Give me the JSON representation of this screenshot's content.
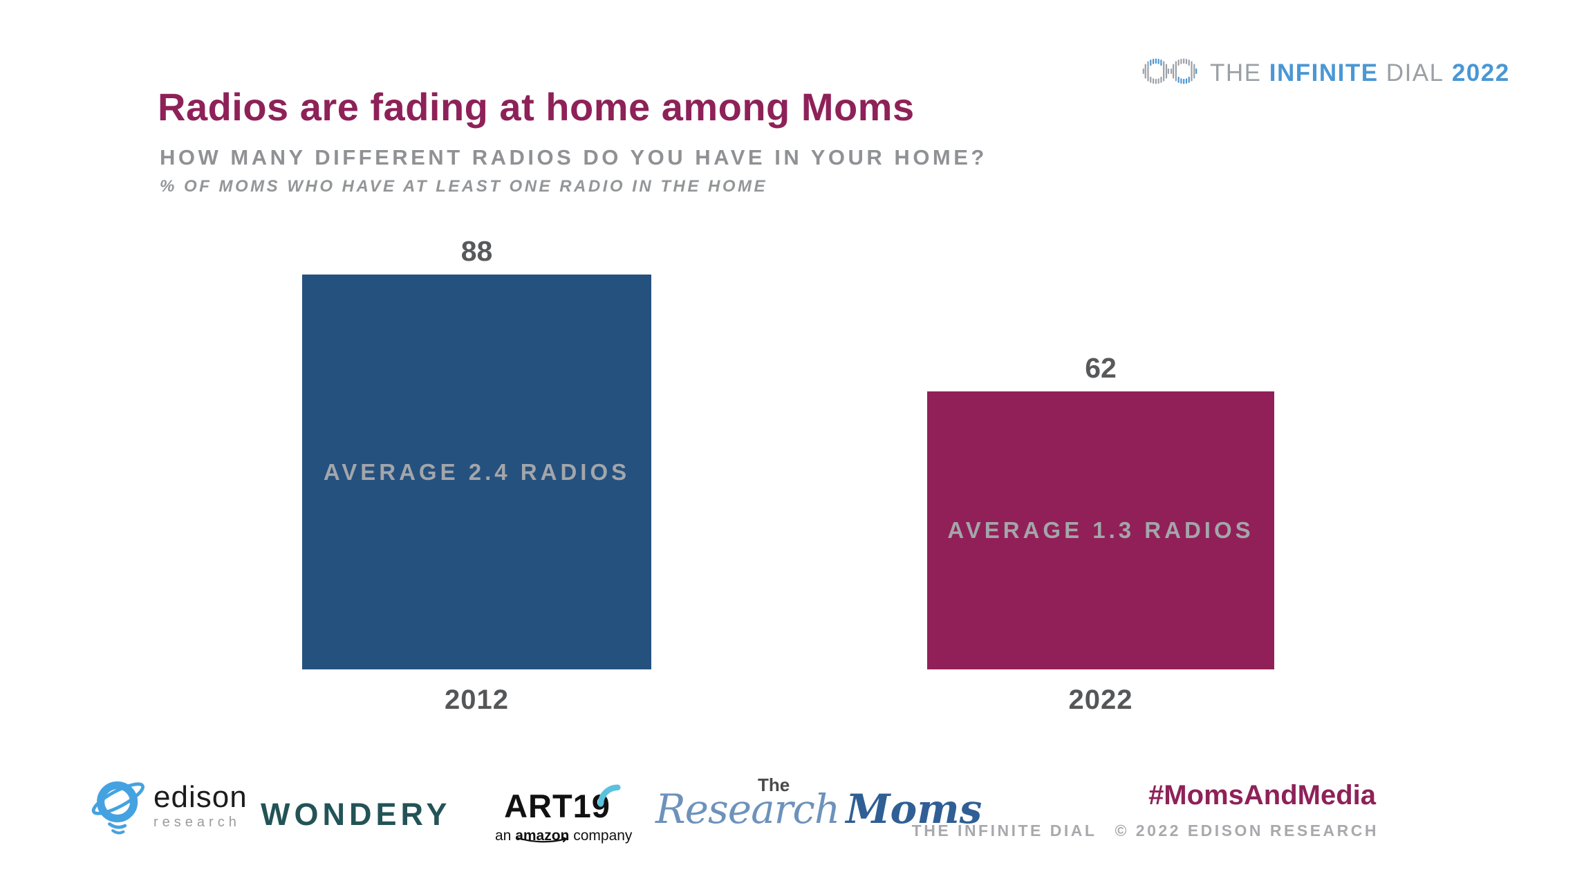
{
  "header": {
    "title": "Radios are fading at home among Moms",
    "subtitle": "HOW MANY DIFFERENT RADIOS DO YOU HAVE IN YOUR HOME?",
    "base_note": "% OF MOMS WHO HAVE AT LEAST ONE RADIO IN THE HOME"
  },
  "brand": {
    "the": "THE",
    "infinite": "INFINITE",
    "dial": "DIAL",
    "year": "2022",
    "gray": "#9aa0a6",
    "blue": "#4a97d4"
  },
  "chart_data": {
    "type": "bar",
    "title": "Radios are fading at home among Moms",
    "question": "HOW MANY DIFFERENT RADIOS DO YOU HAVE IN YOUR HOME?",
    "base_note": "% OF MOMS WHO HAVE AT LEAST ONE RADIO IN THE HOME",
    "categories": [
      "2012",
      "2022"
    ],
    "values": [
      88,
      62
    ],
    "bar_annotations": [
      "AVERAGE 2.4 RADIOS",
      "AVERAGE 1.3 RADIOS"
    ],
    "colors": [
      "#25517f",
      "#922058"
    ],
    "ylim": [
      0,
      100
    ],
    "grid": false,
    "legend": "none",
    "value_label_position": "above-bar"
  },
  "footer": {
    "edison_name": "edison",
    "edison_sub": "research",
    "wondery": "WONDERY",
    "art19_name": "ART19",
    "art19_sub_prefix": "an ",
    "art19_sub_bold": "amazon",
    "art19_sub_suffix": " company",
    "rm_the": "The",
    "rm_research": "Research",
    "rm_moms": "Moms",
    "hashtag": "#MomsAndMedia",
    "credit_left": "THE INFINITE DIAL",
    "credit_right": "© 2022 EDISON RESEARCH"
  }
}
